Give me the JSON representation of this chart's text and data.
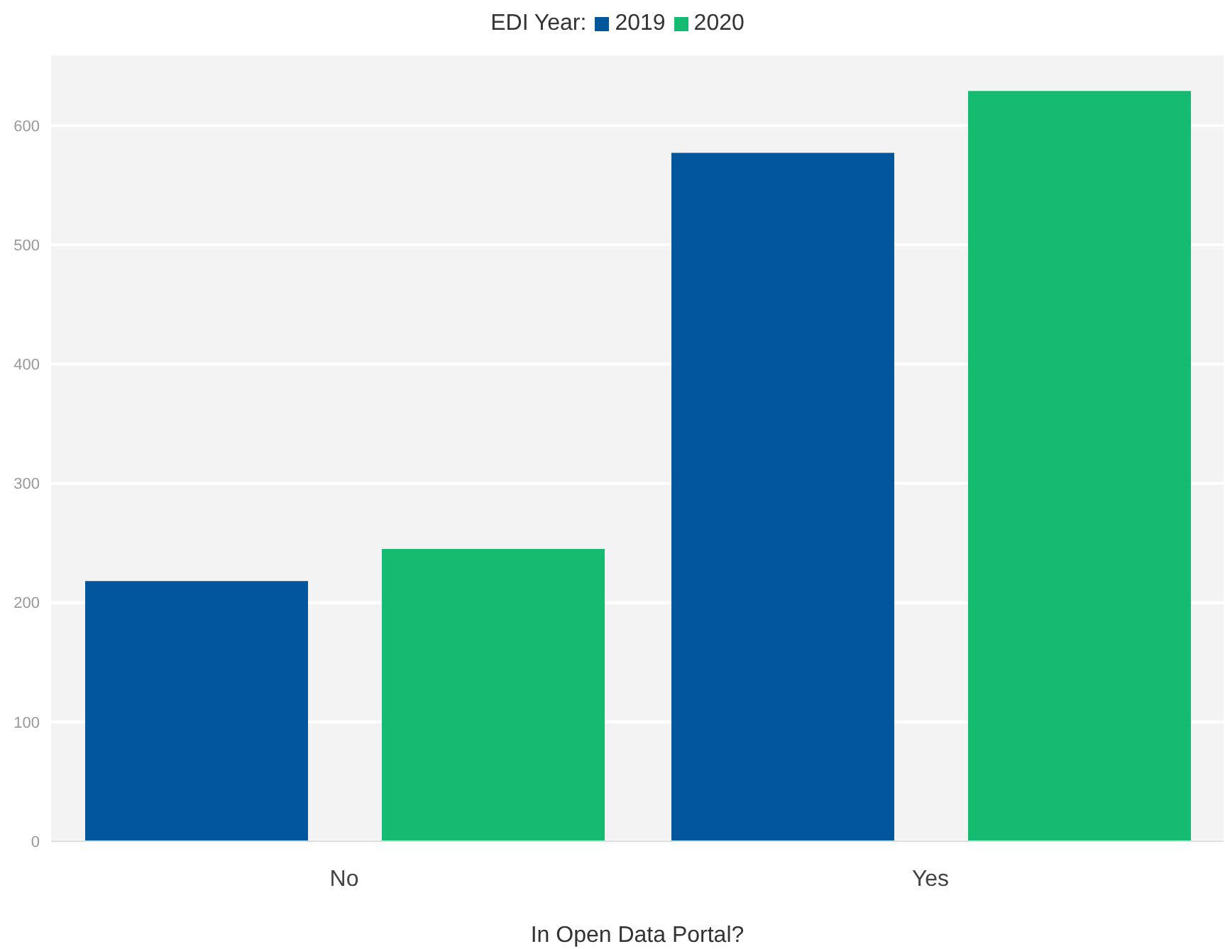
{
  "chart_data": {
    "type": "bar",
    "legend_title": "EDI Year:",
    "xlabel": "In Open Data Portal?",
    "categories": [
      "No",
      "Yes"
    ],
    "series": [
      {
        "name": "2019",
        "color": "#02569b",
        "values": [
          218,
          577
        ]
      },
      {
        "name": "2020",
        "color": "#16bb72",
        "values": [
          245,
          629
        ]
      }
    ],
    "ylim": [
      0,
      660
    ],
    "yticks": [
      0,
      100,
      200,
      300,
      400,
      500,
      600
    ],
    "grid": "y",
    "legend": "top"
  }
}
